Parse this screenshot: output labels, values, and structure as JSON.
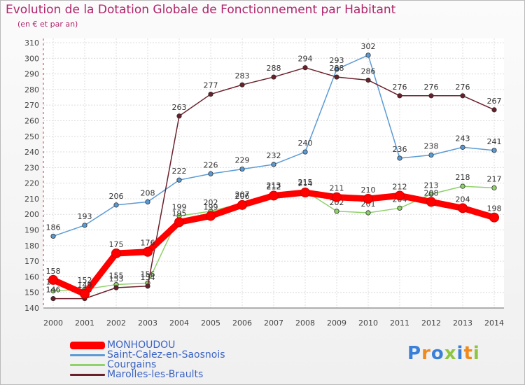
{
  "title": "Evolution de la Dotation Globale de Fonctionnement par Habitant",
  "subtitle": "(en € et par an)",
  "logo": "Proxiti",
  "chart_data": {
    "type": "line",
    "title": "Evolution de la Dotation Globale de Fonctionnement par Habitant",
    "ylabel": "(en € et par an)",
    "xlabel": "",
    "ylim": [
      140,
      310
    ],
    "yticks": [
      140,
      150,
      160,
      170,
      180,
      190,
      200,
      210,
      220,
      230,
      240,
      250,
      260,
      270,
      280,
      290,
      300,
      310
    ],
    "grid": true,
    "categories": [
      "2000",
      "2001",
      "2002",
      "2003",
      "2004",
      "2005",
      "2006",
      "2007",
      "2008",
      "2009",
      "2010",
      "2011",
      "2012",
      "2013",
      "2014"
    ],
    "series": [
      {
        "name": "Saint-Calez-en-Saosnois",
        "color": "#5b9bd5",
        "values": [
          186,
          193,
          206,
          208,
          222,
          226,
          229,
          232,
          240,
          293,
          302,
          236,
          238,
          243,
          241
        ]
      },
      {
        "name": "Courgains",
        "color": "#8fd16a",
        "values": [
          151,
          152,
          155,
          156,
          199,
          202,
          207,
          213,
          215,
          202,
          201,
          204,
          213,
          218,
          217
        ]
      },
      {
        "name": "Marolles-les-Braults",
        "color": "#6b1f2a",
        "values": [
          146,
          146,
          153,
          154,
          263,
          277,
          283,
          288,
          294,
          288,
          286,
          276,
          276,
          276,
          267
        ]
      },
      {
        "name": "MONHOUDOU",
        "color": "#ff0000",
        "values": [
          158,
          149,
          175,
          176,
          195,
          199,
          206,
          212,
          214,
          211,
          210,
          212,
          208,
          204,
          198
        ]
      }
    ],
    "legend": [
      "MONHOUDOU",
      "Saint-Calez-en-Saosnois",
      "Courgains",
      "Marolles-les-Braults"
    ],
    "legend_position": "bottom-left"
  }
}
